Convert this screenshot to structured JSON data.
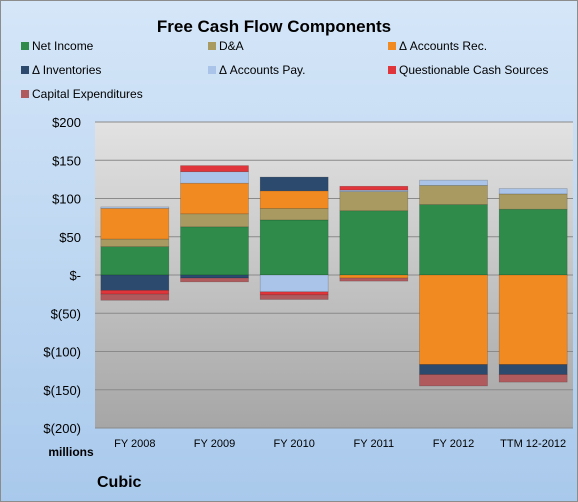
{
  "chart_data": {
    "type": "bar",
    "stacked": true,
    "title": "Free Cash Flow Components",
    "units_label": "millions",
    "company": "Cubic",
    "categories": [
      "FY 2008",
      "FY 2009",
      "FY 2010",
      "FY 2011",
      "FY 2012",
      "TTM 12-2012"
    ],
    "ylim": [
      -200,
      200
    ],
    "yticks": [
      200,
      150,
      100,
      50,
      0,
      -50,
      -100,
      -150,
      -200
    ],
    "ytick_labels": [
      "$200",
      "$150",
      "$100",
      "$50",
      "$-",
      "$(50)",
      "$(100)",
      "$(150)",
      "$(200)"
    ],
    "grid": true,
    "legend_position": "top",
    "series": [
      {
        "name": "Net Income",
        "color": "#2e8b4a",
        "values": [
          37,
          63,
          72,
          84,
          92,
          86
        ]
      },
      {
        "name": "D&A",
        "color": "#a89a60",
        "values": [
          10,
          17,
          15,
          25,
          25,
          20
        ]
      },
      {
        "name": "Δ Accounts Rec.",
        "color": "#f28a22",
        "values": [
          40,
          40,
          23,
          -4,
          -117,
          -117
        ]
      },
      {
        "name": "Δ Inventories",
        "color": "#2c4a6e",
        "values": [
          -20,
          -4,
          18,
          0,
          -13,
          -13
        ]
      },
      {
        "name": "Δ Accounts Pay.",
        "color": "#a9c4e8",
        "values": [
          2,
          15,
          -22,
          2,
          7,
          7
        ]
      },
      {
        "name": "Questionable Cash Sources",
        "color": "#e0353a",
        "values": [
          -5,
          8,
          -4,
          5,
          0,
          0
        ]
      },
      {
        "name": "Capital Expenditures",
        "color": "#b05a5e",
        "values": [
          -8,
          -5,
          -6,
          -4,
          -15,
          -10
        ]
      }
    ]
  }
}
